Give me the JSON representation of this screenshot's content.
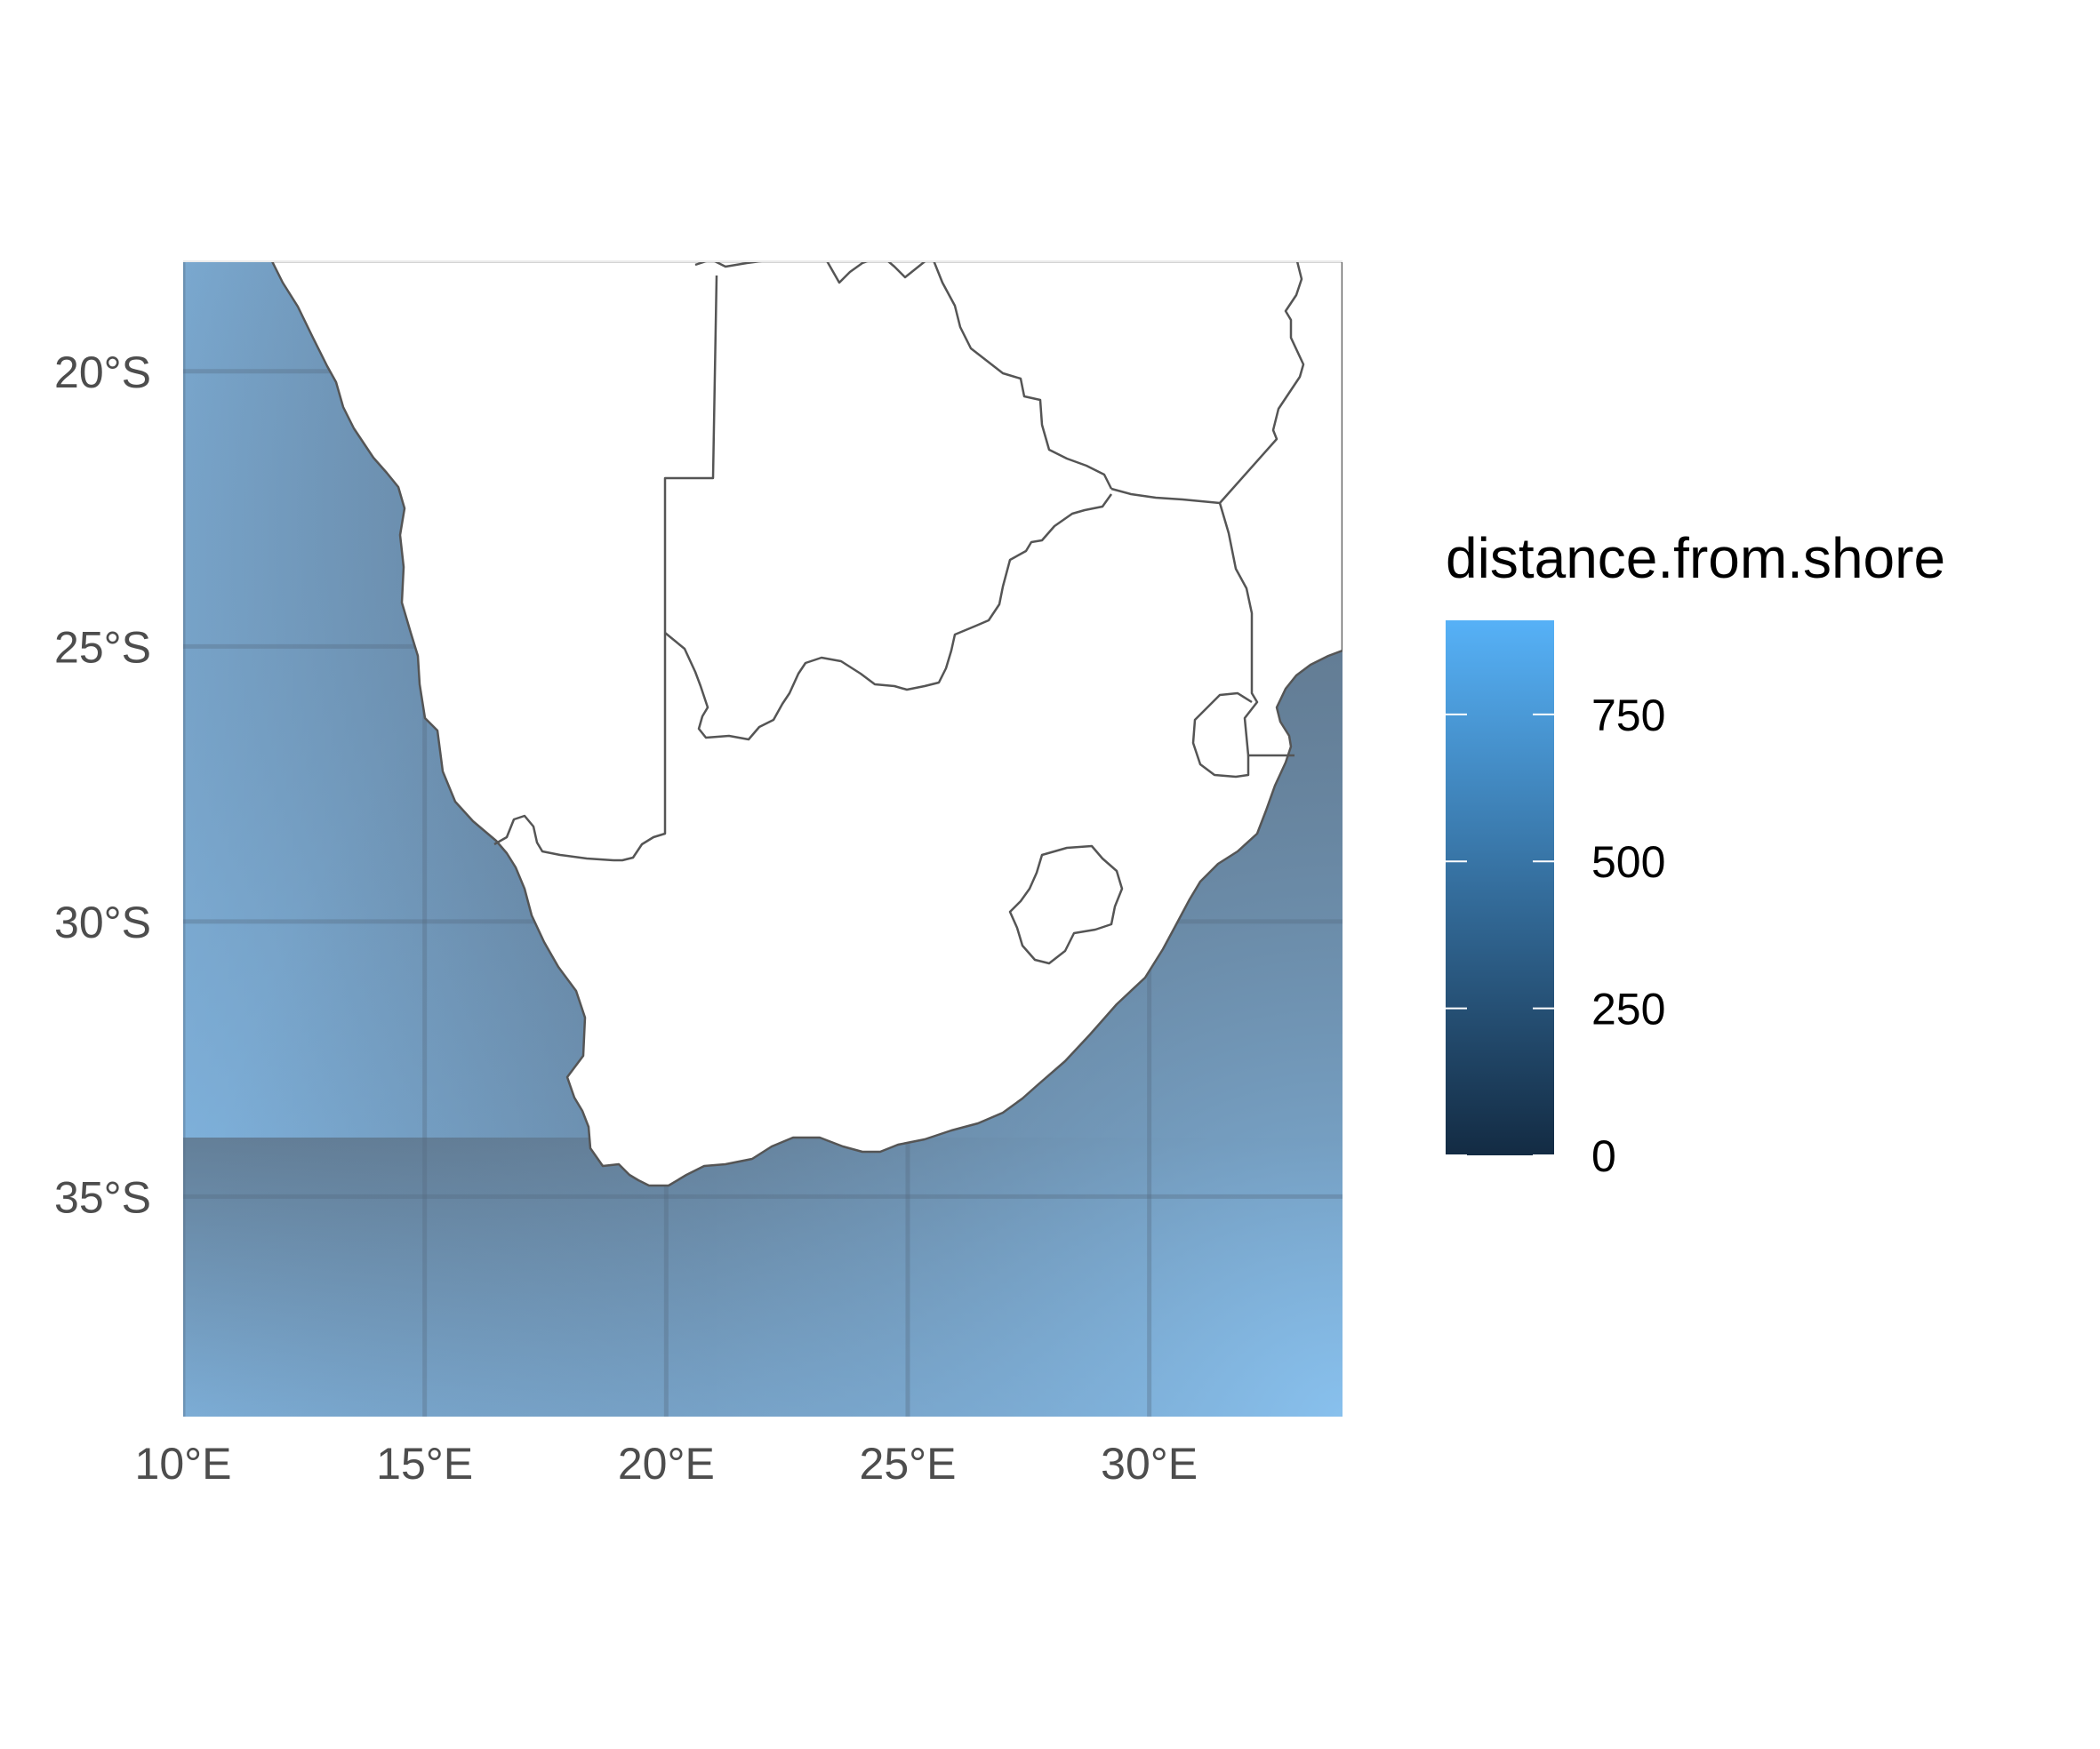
{
  "chart_data": {
    "type": "map",
    "region": "Southern Africa",
    "fill_variable": "distance.from.shore",
    "x_ticks": [
      "10°E",
      "15°E",
      "20°E",
      "25°E",
      "30°E"
    ],
    "y_ticks": [
      "20°S",
      "25°S",
      "30°S",
      "35°S"
    ],
    "xlim": [
      10,
      34
    ],
    "ylim": [
      -39,
      -18
    ],
    "legend": {
      "title": "distance.from.shore",
      "breaks": [
        0,
        250,
        500,
        750
      ],
      "labels": [
        "0",
        "250",
        "500",
        "750"
      ],
      "range": [
        0,
        910
      ],
      "color_low": "#132b43",
      "color_high": "#56b1f7",
      "placement": "right"
    },
    "grid": true,
    "land_color": "#ffffff",
    "border_color": "#555555"
  }
}
